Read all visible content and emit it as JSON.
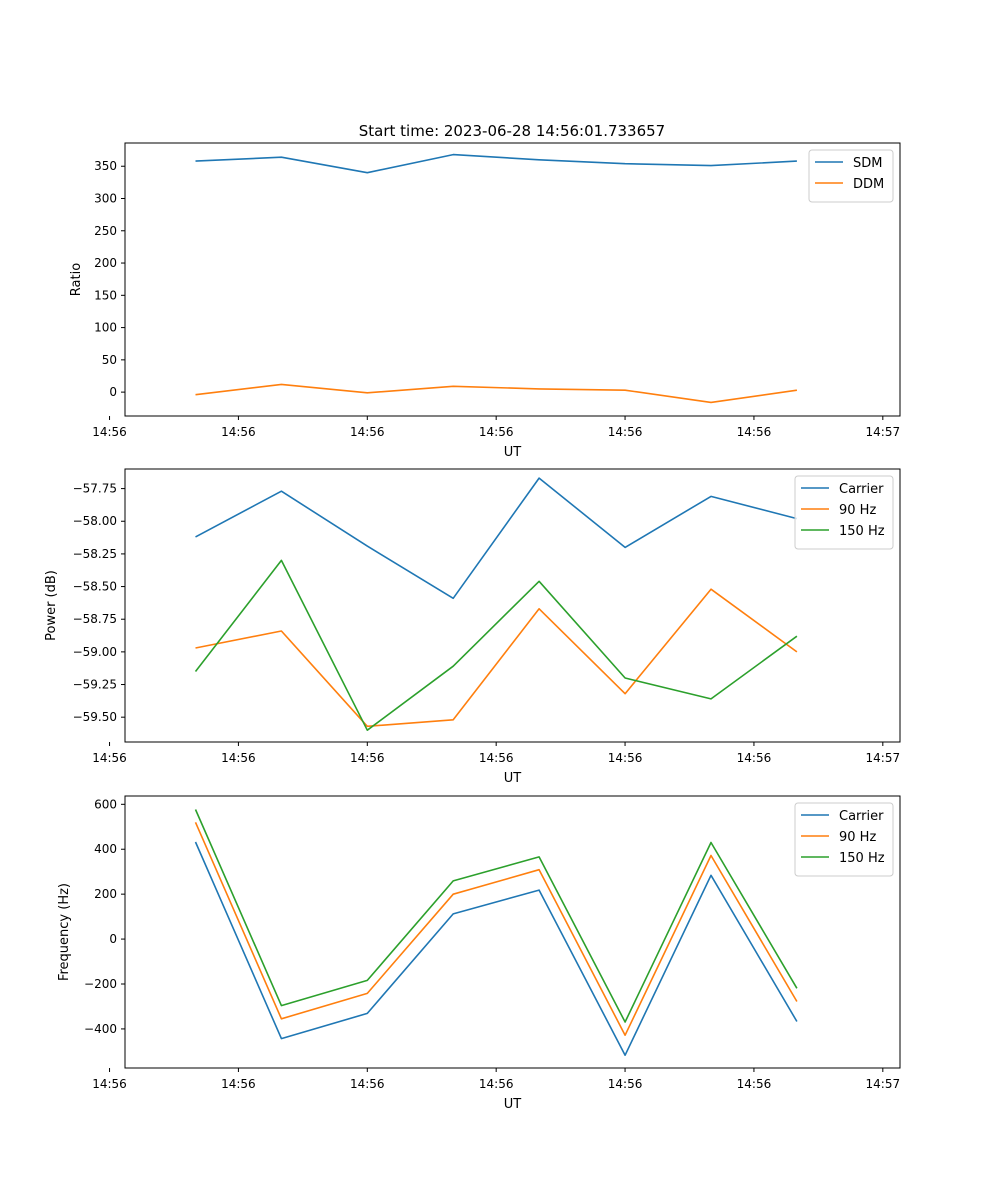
{
  "title": "Start time: 2023-06-28 14:56:01.733657",
  "colors": {
    "blue": "#1f77b4",
    "orange": "#ff7f0e",
    "green": "#2ca02c"
  },
  "chart_data": [
    {
      "type": "line",
      "xlabel": "UT",
      "ylabel": "Ratio",
      "x": [
        1,
        2,
        3,
        4,
        5,
        6,
        7,
        8
      ],
      "xlim": [
        0.18,
        9.2
      ],
      "x_ticks": [
        {
          "x": 0.0,
          "label": "14:56"
        },
        {
          "x": 1.5,
          "label": "14:56"
        },
        {
          "x": 3.0,
          "label": "14:56"
        },
        {
          "x": 4.5,
          "label": "14:56"
        },
        {
          "x": 6.0,
          "label": "14:56"
        },
        {
          "x": 7.5,
          "label": "14:56"
        },
        {
          "x": 9.0,
          "label": "14:57"
        }
      ],
      "ylim": [
        -37,
        386
      ],
      "y_ticks": [
        0,
        50,
        100,
        150,
        200,
        250,
        300,
        350
      ],
      "y_tick_labels": [
        "0",
        "50",
        "100",
        "150",
        "200",
        "250",
        "300",
        "350"
      ],
      "legend": "top-right",
      "grid": false,
      "series": [
        {
          "name": "SDM",
          "color": "#1f77b4",
          "values": [
            358,
            364,
            340,
            368,
            360,
            354,
            351,
            358
          ]
        },
        {
          "name": "DDM",
          "color": "#ff7f0e",
          "values": [
            -4,
            12,
            -1,
            9,
            5,
            3,
            -16,
            3
          ]
        }
      ]
    },
    {
      "type": "line",
      "xlabel": "UT",
      "ylabel": "Power (dB)",
      "x": [
        1,
        2,
        3,
        4,
        5,
        6,
        7,
        8
      ],
      "xlim": [
        0.18,
        9.2
      ],
      "x_ticks": [
        {
          "x": 0.0,
          "label": "14:56"
        },
        {
          "x": 1.5,
          "label": "14:56"
        },
        {
          "x": 3.0,
          "label": "14:56"
        },
        {
          "x": 4.5,
          "label": "14:56"
        },
        {
          "x": 6.0,
          "label": "14:56"
        },
        {
          "x": 7.5,
          "label": "14:56"
        },
        {
          "x": 9.0,
          "label": "14:57"
        }
      ],
      "ylim": [
        -59.69,
        -57.6
      ],
      "y_ticks": [
        -57.75,
        -58.0,
        -58.25,
        -58.5,
        -58.75,
        -59.0,
        -59.25,
        -59.5
      ],
      "y_tick_labels": [
        "−57.75",
        "−58.00",
        "−58.25",
        "−58.50",
        "−58.75",
        "−59.00",
        "−59.25",
        "−59.50"
      ],
      "legend": "top-right",
      "grid": false,
      "series": [
        {
          "name": "Carrier",
          "color": "#1f77b4",
          "values": [
            -58.12,
            -57.77,
            -58.19,
            -58.59,
            -57.67,
            -58.2,
            -57.81,
            -57.98
          ]
        },
        {
          "name": "90 Hz",
          "color": "#ff7f0e",
          "values": [
            -58.97,
            -58.84,
            -59.57,
            -59.52,
            -58.67,
            -59.32,
            -58.52,
            -59.0
          ]
        },
        {
          "name": "150 Hz",
          "color": "#2ca02c",
          "values": [
            -59.15,
            -58.3,
            -59.6,
            -59.11,
            -58.46,
            -59.2,
            -59.36,
            -58.88
          ]
        }
      ]
    },
    {
      "type": "line",
      "xlabel": "UT",
      "ylabel": "Frequency (Hz)",
      "x": [
        1,
        2,
        3,
        4,
        5,
        6,
        7,
        8
      ],
      "xlim": [
        0.18,
        9.2
      ],
      "x_ticks": [
        {
          "x": 0.0,
          "label": "14:56"
        },
        {
          "x": 1.5,
          "label": "14:56"
        },
        {
          "x": 3.0,
          "label": "14:56"
        },
        {
          "x": 4.5,
          "label": "14:56"
        },
        {
          "x": 6.0,
          "label": "14:56"
        },
        {
          "x": 7.5,
          "label": "14:56"
        },
        {
          "x": 9.0,
          "label": "14:57"
        }
      ],
      "ylim": [
        -574,
        637
      ],
      "y_ticks": [
        600,
        400,
        200,
        0,
        -200,
        -400
      ],
      "y_tick_labels": [
        "600",
        "400",
        "200",
        "0",
        "−200",
        "−400"
      ],
      "legend": "top-right",
      "grid": false,
      "series": [
        {
          "name": "Carrier",
          "color": "#1f77b4",
          "values": [
            432,
            -443,
            -331,
            112,
            218,
            -517,
            284,
            -367
          ]
        },
        {
          "name": "90 Hz",
          "color": "#ff7f0e",
          "values": [
            520,
            -355,
            -242,
            200,
            309,
            -428,
            372,
            -278
          ]
        },
        {
          "name": "150 Hz",
          "color": "#2ca02c",
          "values": [
            577,
            -296,
            -184,
            259,
            366,
            -369,
            430,
            -219
          ]
        }
      ]
    }
  ]
}
